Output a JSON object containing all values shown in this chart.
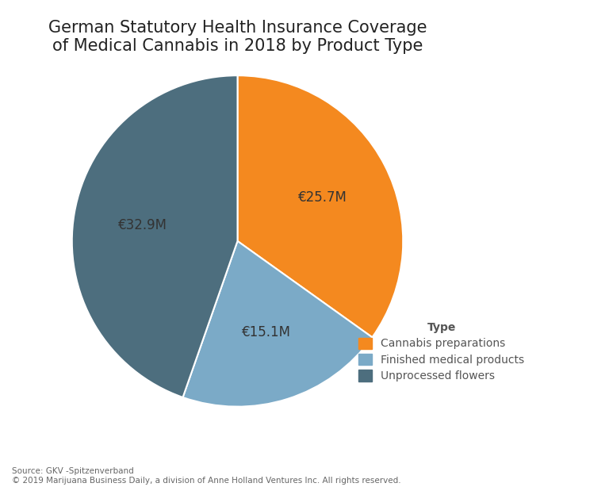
{
  "title": "German Statutory Health Insurance Coverage\nof Medical Cannabis in 2018 by Product Type",
  "slices": [
    {
      "label": "Cannabis preparations",
      "value": 25.7,
      "color": "#F4891F"
    },
    {
      "label": "Finished medical products",
      "value": 15.1,
      "color": "#7BAAC7"
    },
    {
      "label": "Unprocessed flowers",
      "value": 32.9,
      "color": "#4D6E7E"
    }
  ],
  "labels_on_chart": [
    "€25.7M",
    "€15.1M",
    "€32.9M"
  ],
  "legend_title": "Type",
  "source_text": "Source: GKV -Spitzenverband\n© 2019 Marijuana Business Daily, a division of Anne Holland Ventures Inc. All rights reserved.",
  "background_color": "#FFFFFF",
  "title_fontsize": 15,
  "label_fontsize": 12,
  "legend_fontsize": 10
}
